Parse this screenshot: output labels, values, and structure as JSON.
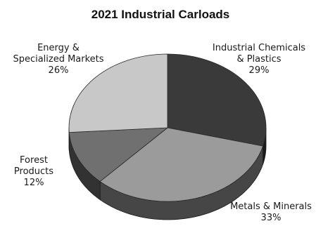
{
  "chart_data": {
    "type": "pie",
    "title": "2021 Industrial Carloads",
    "style": "3d",
    "colors": [
      "#3a3a3a",
      "#9b9b9b",
      "#707070",
      "#c8c8c8"
    ],
    "slices": [
      {
        "label": [
          "Industrial Chemicals",
          "& Plastics"
        ],
        "value": 29,
        "value_label": "29%"
      },
      {
        "label": [
          "Metals & Minerals"
        ],
        "value": 33,
        "value_label": "33%"
      },
      {
        "label": [
          "Forest",
          "Products"
        ],
        "value": 12,
        "value_label": "12%"
      },
      {
        "label": [
          "Energy &",
          "Specialized Markets"
        ],
        "value": 26,
        "value_label": "26%"
      }
    ]
  }
}
